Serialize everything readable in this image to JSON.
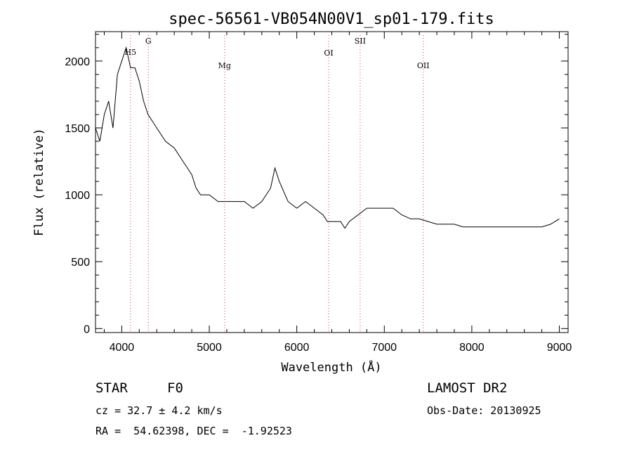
{
  "chart_data": {
    "type": "line",
    "title": "spec-56561-VB054N00V1_sp01-179.fits",
    "xlabel": "Wavelength (Å)",
    "ylabel": "Flux (relative)",
    "xlim": [
      3700,
      9100
    ],
    "ylim": [
      -30,
      2220
    ],
    "xticks": [
      4000,
      5000,
      6000,
      7000,
      8000,
      9000
    ],
    "xtick_labels": [
      "4000",
      "5000",
      "6000",
      "7000",
      "8000",
      "9000"
    ],
    "yticks": [
      0,
      500,
      1000,
      1500,
      2000
    ],
    "ytick_labels": [
      "0",
      "500",
      "1000",
      "1500",
      "2000"
    ],
    "grid": false,
    "series": [
      {
        "color": "#000000",
        "x": [
          3700,
          3750,
          3800,
          3850,
          3900,
          3950,
          4000,
          4050,
          4100,
          4150,
          4200,
          4250,
          4300,
          4350,
          4400,
          4500,
          4600,
          4700,
          4750,
          4800,
          4850,
          4900,
          5000,
          5100,
          5200,
          5300,
          5400,
          5500,
          5600,
          5700,
          5750,
          5800,
          5900,
          6000,
          6100,
          6200,
          6300,
          6350,
          6400,
          6500,
          6550,
          6600,
          6700,
          6800,
          6900,
          7000,
          7100,
          7200,
          7300,
          7400,
          7500,
          7600,
          7700,
          7800,
          7900,
          8000,
          8100,
          8200,
          8300,
          8400,
          8500,
          8600,
          8700,
          8800,
          8900,
          8950,
          9000
        ],
        "y": [
          1500,
          1400,
          1600,
          1700,
          1500,
          1900,
          2000,
          2100,
          1950,
          1950,
          1850,
          1700,
          1600,
          1550,
          1500,
          1400,
          1350,
          1250,
          1200,
          1150,
          1050,
          1000,
          1000,
          950,
          950,
          950,
          950,
          900,
          950,
          1050,
          1200,
          1100,
          950,
          900,
          950,
          900,
          850,
          800,
          800,
          800,
          750,
          800,
          850,
          900,
          900,
          900,
          900,
          850,
          820,
          820,
          800,
          780,
          780,
          780,
          760,
          760,
          760,
          760,
          760,
          760,
          760,
          760,
          760,
          760,
          780,
          800,
          820
        ]
      }
    ],
    "annotations": [
      {
        "text": "H5",
        "x": 4100
      },
      {
        "text": "G",
        "x": 4304
      },
      {
        "text": "Mg",
        "x": 5175
      },
      {
        "text": "OI",
        "x": 6364
      },
      {
        "text": "SII",
        "x": 6724
      },
      {
        "text": "OII",
        "x": 7445
      }
    ]
  },
  "info": {
    "class": "STAR",
    "subclass": "F0",
    "survey": "LAMOST DR2",
    "cz": "cz = 32.7 ± 4.2 km/s",
    "obs_date": "Obs-Date: 20130925",
    "radec": "RA =  54.62398, DEC =  -1.92523"
  }
}
